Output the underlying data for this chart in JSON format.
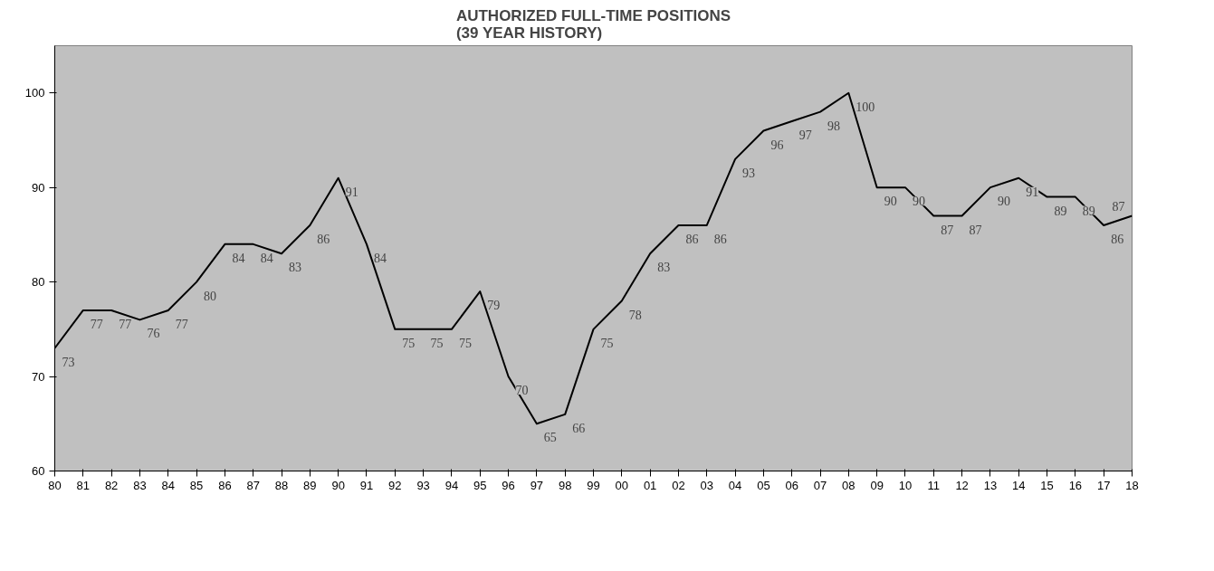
{
  "chart_data": {
    "type": "line",
    "title": "AUTHORIZED FULL-TIME POSITIONS\n(39 YEAR HISTORY)",
    "categories": [
      "80",
      "81",
      "82",
      "83",
      "84",
      "85",
      "86",
      "87",
      "88",
      "89",
      "90",
      "91",
      "92",
      "93",
      "94",
      "95",
      "96",
      "97",
      "98",
      "99",
      "00",
      "01",
      "02",
      "03",
      "04",
      "05",
      "06",
      "07",
      "08",
      "09",
      "10",
      "11",
      "12",
      "13",
      "14",
      "15",
      "16",
      "17",
      "18"
    ],
    "series": [
      {
        "color": "#000000",
        "values": [
          73,
          77,
          77,
          76,
          77,
          80,
          84,
          84,
          83,
          86,
          91,
          84,
          75,
          75,
          75,
          79,
          70,
          65,
          66,
          75,
          78,
          83,
          86,
          86,
          93,
          96,
          97,
          98,
          100,
          90,
          90,
          87,
          87,
          90,
          91,
          89,
          89,
          86,
          87
        ]
      }
    ],
    "ylim": [
      60,
      105
    ],
    "yticks": [
      60,
      70,
      80,
      90,
      100
    ],
    "grid": false,
    "marker": "none",
    "line_style": "solid",
    "data_labels": true
  }
}
